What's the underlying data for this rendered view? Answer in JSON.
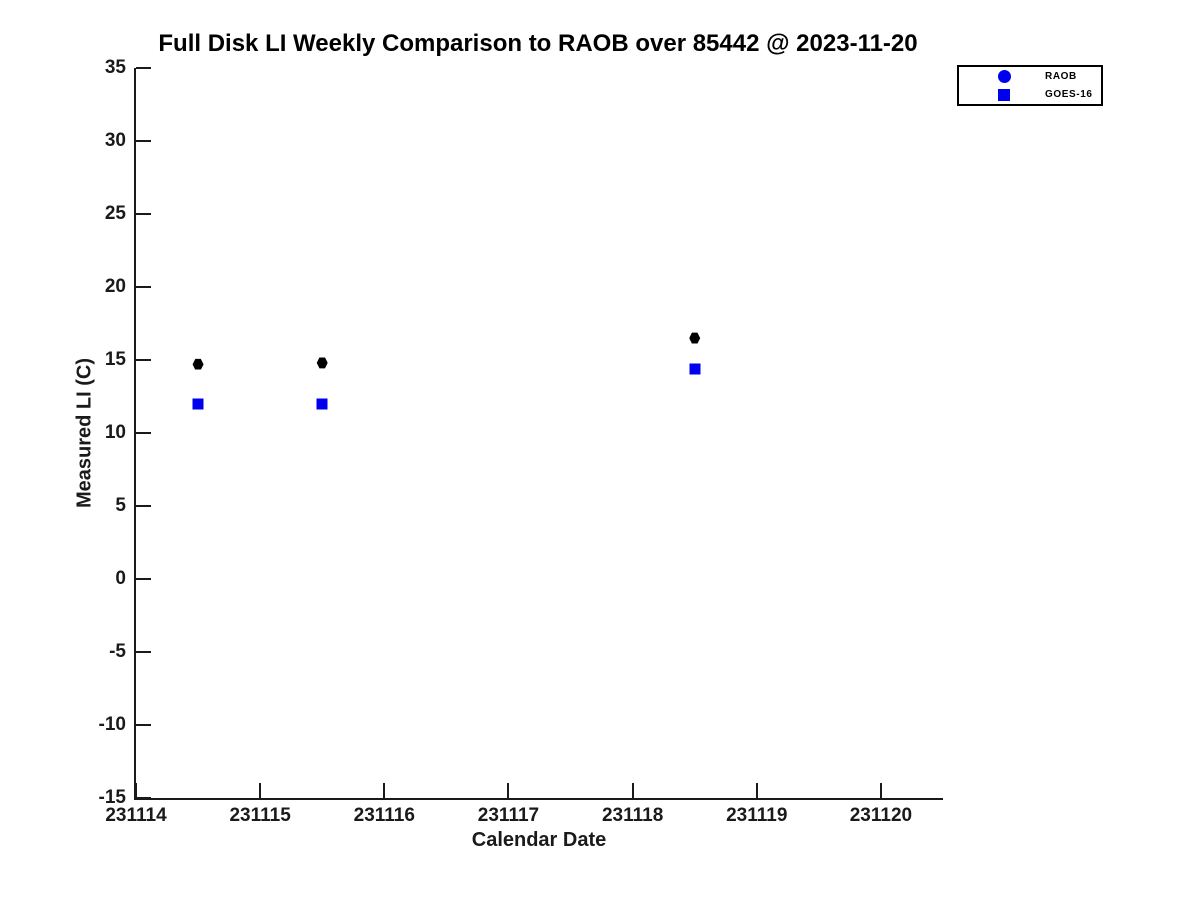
{
  "title": "Full Disk LI Weekly Comparison to RAOB over 85442 @ 2023-11-20",
  "colors": {
    "marker_blue": "#0000ee",
    "marker_black": "#000000",
    "axis_text": "#1a1a1a",
    "background": "#ffffff"
  },
  "chart_data": {
    "type": "scatter",
    "title": "Full Disk LI Weekly Comparison to RAOB over 85442 @ 2023-11-20",
    "xlabel": "Calendar Date",
    "ylabel": "Measured LI (C)",
    "xlim": [
      231114,
      231120.5
    ],
    "ylim": [
      -15,
      35
    ],
    "xticks": [
      231114,
      231115,
      231116,
      231117,
      231118,
      231119,
      231120
    ],
    "yticks": [
      35,
      30,
      25,
      20,
      15,
      10,
      5,
      0,
      -5,
      -10,
      -15
    ],
    "grid": false,
    "legend_position": "top-right",
    "series": [
      {
        "name": "RAOB",
        "marker": "hexagon",
        "plot_color": "#000000",
        "legend_color": "#0000ee",
        "points": [
          [
            231114.5,
            14.7
          ],
          [
            231115.5,
            14.8
          ],
          [
            231118.5,
            16.5
          ]
        ]
      },
      {
        "name": "GOES-16",
        "marker": "square",
        "plot_color": "#0000ee",
        "legend_color": "#0000ee",
        "points": [
          [
            231114.5,
            12.0
          ],
          [
            231115.5,
            12.0
          ],
          [
            231118.5,
            14.4
          ]
        ]
      }
    ]
  }
}
